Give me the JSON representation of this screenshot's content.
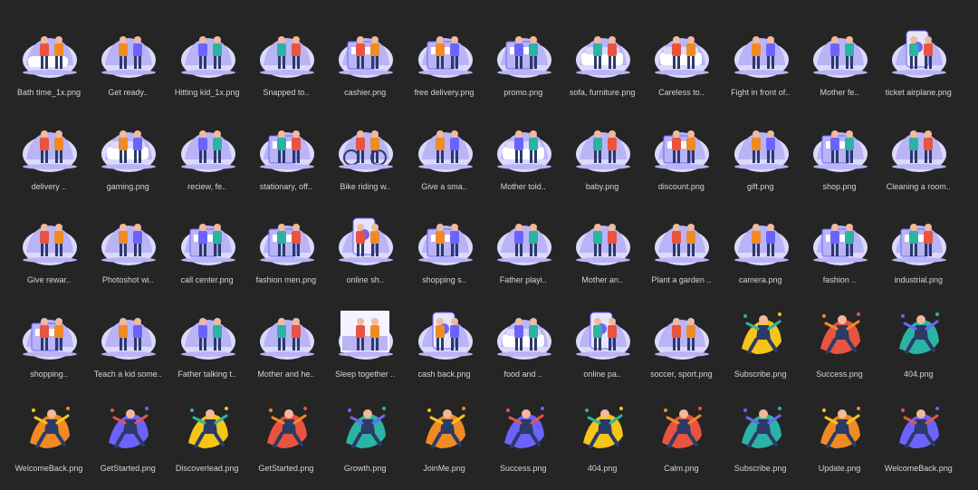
{
  "palette": {
    "bg": "#252526",
    "label": "#d4d4d4",
    "lavender": "#b9b4f5",
    "lavender_light": "#dcd9fb",
    "purple": "#6c63ff",
    "navy": "#2b3a67",
    "red": "#e8543f",
    "orange": "#f08a24",
    "yellow": "#f5c518",
    "teal": "#2bb3a3",
    "skin": "#f2b99a"
  },
  "files": [
    {
      "name": "Bath time_1x.png",
      "style": "lav",
      "icon": "bath-illustration"
    },
    {
      "name": "Get ready..",
      "style": "lav",
      "icon": "people-illustration"
    },
    {
      "name": "Hitting kid_1x.png",
      "style": "lav",
      "icon": "people-illustration"
    },
    {
      "name": "Snapped to..",
      "style": "lav",
      "icon": "people-illustration"
    },
    {
      "name": "cashier.png",
      "style": "lav",
      "icon": "shop-illustration"
    },
    {
      "name": "free delivery.png",
      "style": "lav",
      "icon": "shop-illustration"
    },
    {
      "name": "promo.png",
      "style": "lav",
      "icon": "shop-illustration"
    },
    {
      "name": "sofa, furniture.png",
      "style": "lav",
      "icon": "sofa-illustration"
    },
    {
      "name": "Careless to..",
      "style": "lav",
      "icon": "sofa-illustration"
    },
    {
      "name": "Fight in front of..",
      "style": "lav",
      "icon": "people-illustration"
    },
    {
      "name": "Mother fe..",
      "style": "lav",
      "icon": "people-illustration"
    },
    {
      "name": "ticket airplane.png",
      "style": "lav",
      "icon": "phone-illustration"
    },
    {
      "name": "delivery ..",
      "style": "lav",
      "icon": "people-illustration"
    },
    {
      "name": "gaming.png",
      "style": "lav",
      "icon": "sofa-illustration"
    },
    {
      "name": "reciew, fe..",
      "style": "lav",
      "icon": "people-illustration"
    },
    {
      "name": "stationary, off..",
      "style": "lav",
      "icon": "shop-illustration"
    },
    {
      "name": "Bike riding w..",
      "style": "lav",
      "icon": "bike-illustration"
    },
    {
      "name": "Give a sma..",
      "style": "lav",
      "icon": "people-illustration"
    },
    {
      "name": "Mother told..",
      "style": "lav",
      "icon": "sofa-illustration"
    },
    {
      "name": "baby.png",
      "style": "lav",
      "icon": "people-illustration"
    },
    {
      "name": "discount.png",
      "style": "lav",
      "icon": "shop-illustration"
    },
    {
      "name": "gift.png",
      "style": "lav",
      "icon": "people-illustration"
    },
    {
      "name": "shop.png",
      "style": "lav",
      "icon": "shop-illustration"
    },
    {
      "name": "Cleaning a room..",
      "style": "lav",
      "icon": "people-illustration"
    },
    {
      "name": "Give rewar..",
      "style": "lav",
      "icon": "people-illustration"
    },
    {
      "name": "Photoshot wi..",
      "style": "lav",
      "icon": "people-illustration"
    },
    {
      "name": "call center.png",
      "style": "lav",
      "icon": "shop-illustration"
    },
    {
      "name": "fashion men.png",
      "style": "lav",
      "icon": "shop-illustration"
    },
    {
      "name": "online sh..",
      "style": "lav",
      "icon": "phone-illustration"
    },
    {
      "name": "shopping s..",
      "style": "lav",
      "icon": "shop-illustration"
    },
    {
      "name": "Father playi..",
      "style": "lav",
      "icon": "people-illustration"
    },
    {
      "name": "Mother an..",
      "style": "lav",
      "icon": "people-illustration"
    },
    {
      "name": "Plant a garden ..",
      "style": "lav",
      "icon": "people-illustration"
    },
    {
      "name": "camera.png",
      "style": "lav",
      "icon": "people-illustration"
    },
    {
      "name": "fashion ..",
      "style": "lav",
      "icon": "shop-illustration"
    },
    {
      "name": "industrial.png",
      "style": "lav",
      "icon": "shop-illustration"
    },
    {
      "name": "shopping..",
      "style": "lav",
      "icon": "shop-illustration"
    },
    {
      "name": "Teach a kid some..",
      "style": "lav",
      "icon": "people-illustration"
    },
    {
      "name": "Father talking t..",
      "style": "lav",
      "icon": "people-illustration"
    },
    {
      "name": "Mother and he..",
      "style": "lav",
      "icon": "people-illustration"
    },
    {
      "name": "Sleep together ..",
      "style": "lav",
      "icon": "bed-illustration"
    },
    {
      "name": "cash back.png",
      "style": "lav",
      "icon": "phone-illustration"
    },
    {
      "name": "food and ..",
      "style": "lav",
      "icon": "sofa-illustration"
    },
    {
      "name": "online pa..",
      "style": "lav",
      "icon": "phone-illustration"
    },
    {
      "name": "soccer, sport.png",
      "style": "lav",
      "icon": "people-illustration"
    },
    {
      "name": "Subscribe.png",
      "style": "color",
      "icon": "figure-illustration"
    },
    {
      "name": "Success.png",
      "style": "color",
      "icon": "figure-illustration"
    },
    {
      "name": "404.png",
      "style": "color",
      "icon": "figure-illustration"
    },
    {
      "name": "WelcomeBack.png",
      "style": "color",
      "icon": "figure-illustration"
    },
    {
      "name": "GetStarted.png",
      "style": "color",
      "icon": "figure-illustration"
    },
    {
      "name": "Discoverlead.png",
      "style": "color",
      "icon": "figure-illustration"
    },
    {
      "name": "GetStarted.png",
      "style": "color",
      "icon": "figure-illustration"
    },
    {
      "name": "Growth.png",
      "style": "color",
      "icon": "figure-illustration"
    },
    {
      "name": "JoinMe.png",
      "style": "color",
      "icon": "figure-illustration"
    },
    {
      "name": "Success.png",
      "style": "color",
      "icon": "figure-illustration"
    },
    {
      "name": "404.png",
      "style": "color",
      "icon": "figure-illustration"
    },
    {
      "name": "Calm.png",
      "style": "color",
      "icon": "figure-illustration"
    },
    {
      "name": "Subscribe.png",
      "style": "color",
      "icon": "figure-illustration"
    },
    {
      "name": "Update.png",
      "style": "color",
      "icon": "figure-illustration"
    },
    {
      "name": "WelcomeBack.png",
      "style": "color",
      "icon": "figure-illustration"
    }
  ]
}
